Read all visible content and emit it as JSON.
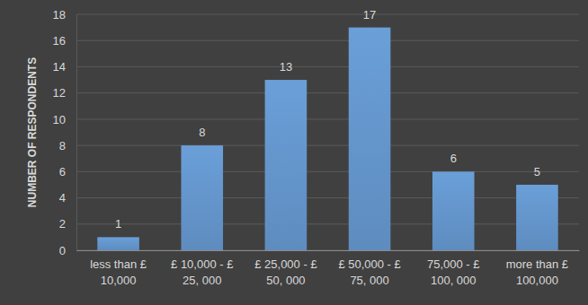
{
  "chart_data": {
    "type": "bar",
    "y_label": "NUMBER OF RESPONDENTS",
    "categories": [
      "less than £\n10,000",
      "£ 10,000 - £\n25, 000",
      "£ 25,000 - £\n50, 000",
      "£ 50,000 - £\n75, 000",
      "75,000 - £\n100, 000",
      "more than £\n100,000"
    ],
    "values": [
      1,
      8,
      13,
      17,
      6,
      5
    ],
    "color": "#6a9fd8",
    "ylim": [
      0,
      18
    ],
    "yticks": [
      0,
      2,
      4,
      6,
      8,
      10,
      12,
      14,
      16,
      18
    ],
    "grid": true,
    "data_labels": true
  }
}
